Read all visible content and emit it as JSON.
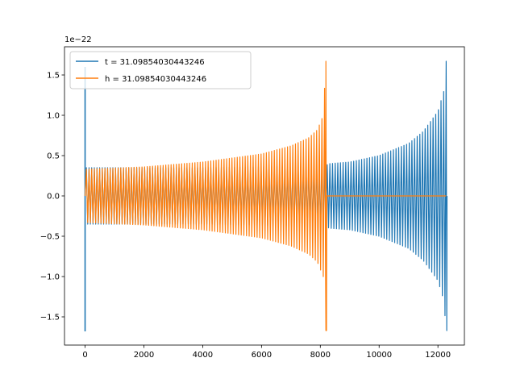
{
  "chart_data": {
    "type": "line",
    "title": "",
    "xlabel": "",
    "ylabel": "",
    "y_offset_label": "1e−22",
    "xlim": [
      -700,
      12900
    ],
    "ylim": [
      -1.85,
      1.85
    ],
    "xticks": [
      0,
      2000,
      4000,
      6000,
      8000,
      10000,
      12000
    ],
    "xtick_labels": [
      "0",
      "2000",
      "4000",
      "6000",
      "8000",
      "10000",
      "12000"
    ],
    "yticks": [
      -1.5,
      -1.0,
      -0.5,
      0.0,
      0.5,
      1.0,
      1.5
    ],
    "ytick_labels": [
      "−1.5",
      "−1.0",
      "−0.5",
      "0.0",
      "0.5",
      "1.0",
      "1.5"
    ],
    "grid": false,
    "legend_position": "upper-left",
    "series": [
      {
        "name": "t = 31.09854030443246",
        "color": "#1f77b4",
        "envelope": [
          [
            0,
            0.35
          ],
          [
            4000,
            0.35
          ],
          [
            8200,
            0.38
          ],
          [
            8300,
            0.4
          ],
          [
            9000,
            0.42
          ],
          [
            10000,
            0.5
          ],
          [
            11000,
            0.65
          ],
          [
            11500,
            0.8
          ],
          [
            12000,
            1.05
          ],
          [
            12200,
            1.3
          ],
          [
            12280,
            1.67
          ]
        ],
        "spikes": [
          [
            0,
            1.6
          ],
          [
            0,
            -1.68
          ]
        ],
        "end_x": 12280,
        "tail_zero_x": 12280
      },
      {
        "name": "h = 31.09854030443246",
        "color": "#ff7f0e",
        "envelope": [
          [
            0,
            0.33
          ],
          [
            2000,
            0.36
          ],
          [
            4000,
            0.42
          ],
          [
            6000,
            0.52
          ],
          [
            7000,
            0.62
          ],
          [
            7600,
            0.72
          ],
          [
            7900,
            0.82
          ],
          [
            8100,
            1.0
          ],
          [
            8190,
            1.67
          ]
        ],
        "end_x": 8190,
        "tail_zero_x": 12280
      }
    ]
  }
}
